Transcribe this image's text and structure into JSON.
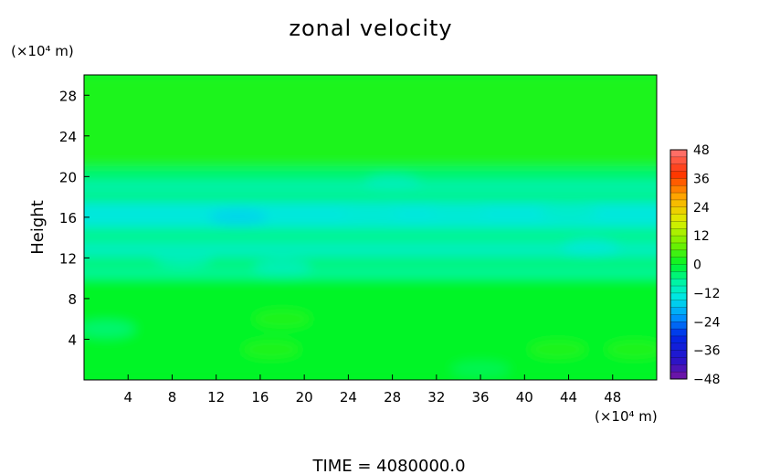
{
  "chart_data": {
    "type": "heatmap",
    "title": "zonal velocity",
    "ylabel": "Height",
    "y_unit": "(×10⁴ m)",
    "x_unit": "(×10⁴ m)",
    "footer": "TIME  =  4080000.0",
    "xlim": [
      0,
      52
    ],
    "ylim": [
      0,
      30
    ],
    "x_ticks": [
      4,
      8,
      12,
      16,
      20,
      24,
      28,
      32,
      36,
      40,
      44,
      48
    ],
    "y_ticks": [
      4,
      8,
      12,
      16,
      20,
      24,
      28
    ],
    "colorbar": {
      "min": -48,
      "max": 48,
      "levels": [
        48,
        36,
        24,
        12,
        0,
        -12,
        -24,
        -36,
        -48
      ],
      "labels": [
        "48",
        "36",
        "24",
        "12",
        "0",
        "−12",
        "−24",
        "−36",
        "−48"
      ]
    },
    "field_bands": [
      {
        "y_range": [
          21,
          30
        ],
        "value": 2
      },
      {
        "y_range": [
          19.5,
          21
        ],
        "value": -4
      },
      {
        "y_range": [
          18.5,
          19.5
        ],
        "value": -9
      },
      {
        "y_range": [
          17.5,
          18.5
        ],
        "value": -5
      },
      {
        "y_range": [
          15,
          17.5
        ],
        "value": -13
      },
      {
        "y_range": [
          13.5,
          15
        ],
        "value": -6
      },
      {
        "y_range": [
          12,
          13.5
        ],
        "value": -10
      },
      {
        "y_range": [
          11,
          12
        ],
        "value": -4
      },
      {
        "y_range": [
          10,
          11
        ],
        "value": -7
      },
      {
        "y_range": [
          0,
          10
        ],
        "value": 0
      }
    ],
    "field_blobs": [
      {
        "x": 14,
        "y": 16,
        "value": -16
      },
      {
        "x": 26,
        "y": 16.3,
        "value": -12
      },
      {
        "x": 34,
        "y": 16.5,
        "value": -12
      },
      {
        "x": 44,
        "y": 16.5,
        "value": -11
      },
      {
        "x": 28,
        "y": 19.3,
        "value": -10
      },
      {
        "x": 46,
        "y": 13,
        "value": -13
      },
      {
        "x": 9,
        "y": 12,
        "value": -10
      },
      {
        "x": 18,
        "y": 11,
        "value": -10
      },
      {
        "x": 2,
        "y": 5,
        "value": -5
      },
      {
        "x": 18,
        "y": 6,
        "value": 3
      },
      {
        "x": 17,
        "y": 3,
        "value": 3
      },
      {
        "x": 43,
        "y": 3,
        "value": 3
      },
      {
        "x": 50,
        "y": 3,
        "value": 3
      },
      {
        "x": 36,
        "y": 1,
        "value": -3
      }
    ]
  }
}
